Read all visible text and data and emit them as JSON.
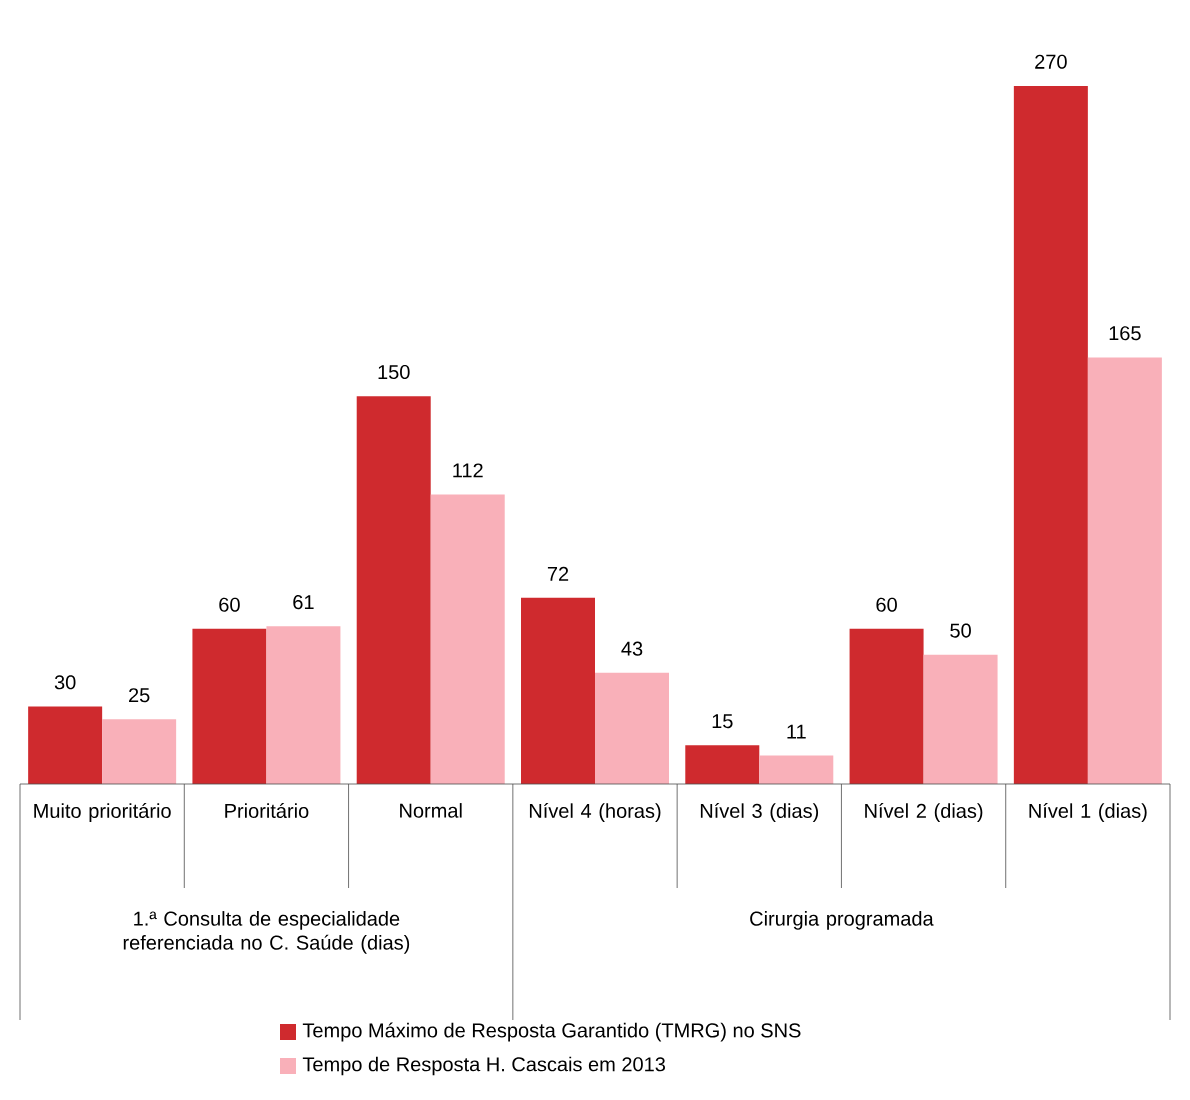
{
  "chart_data": {
    "type": "bar",
    "categories": [
      "Muito prioritário",
      "Prioritário",
      "Normal",
      "Nível 4 (horas)",
      "Nível 3 (dias)",
      "Nível 2 (dias)",
      "Nível 1 (dias)"
    ],
    "series": [
      {
        "name": "Tempo Máximo de Resposta Garantido (TMRG) no SNS",
        "color": "#cf2a2e",
        "values": [
          30,
          60,
          150,
          72,
          15,
          60,
          270
        ]
      },
      {
        "name": "Tempo de Resposta H. Cascais em 2013",
        "color": "#f9b0b9",
        "values": [
          25,
          61,
          112,
          43,
          11,
          50,
          165
        ]
      }
    ],
    "annotations": [
      "1.ª Consulta de especialidade referenciada no C. Saúde (dias)",
      "Cirurgia programada"
    ],
    "data_labels": true,
    "legend": "bottom"
  }
}
